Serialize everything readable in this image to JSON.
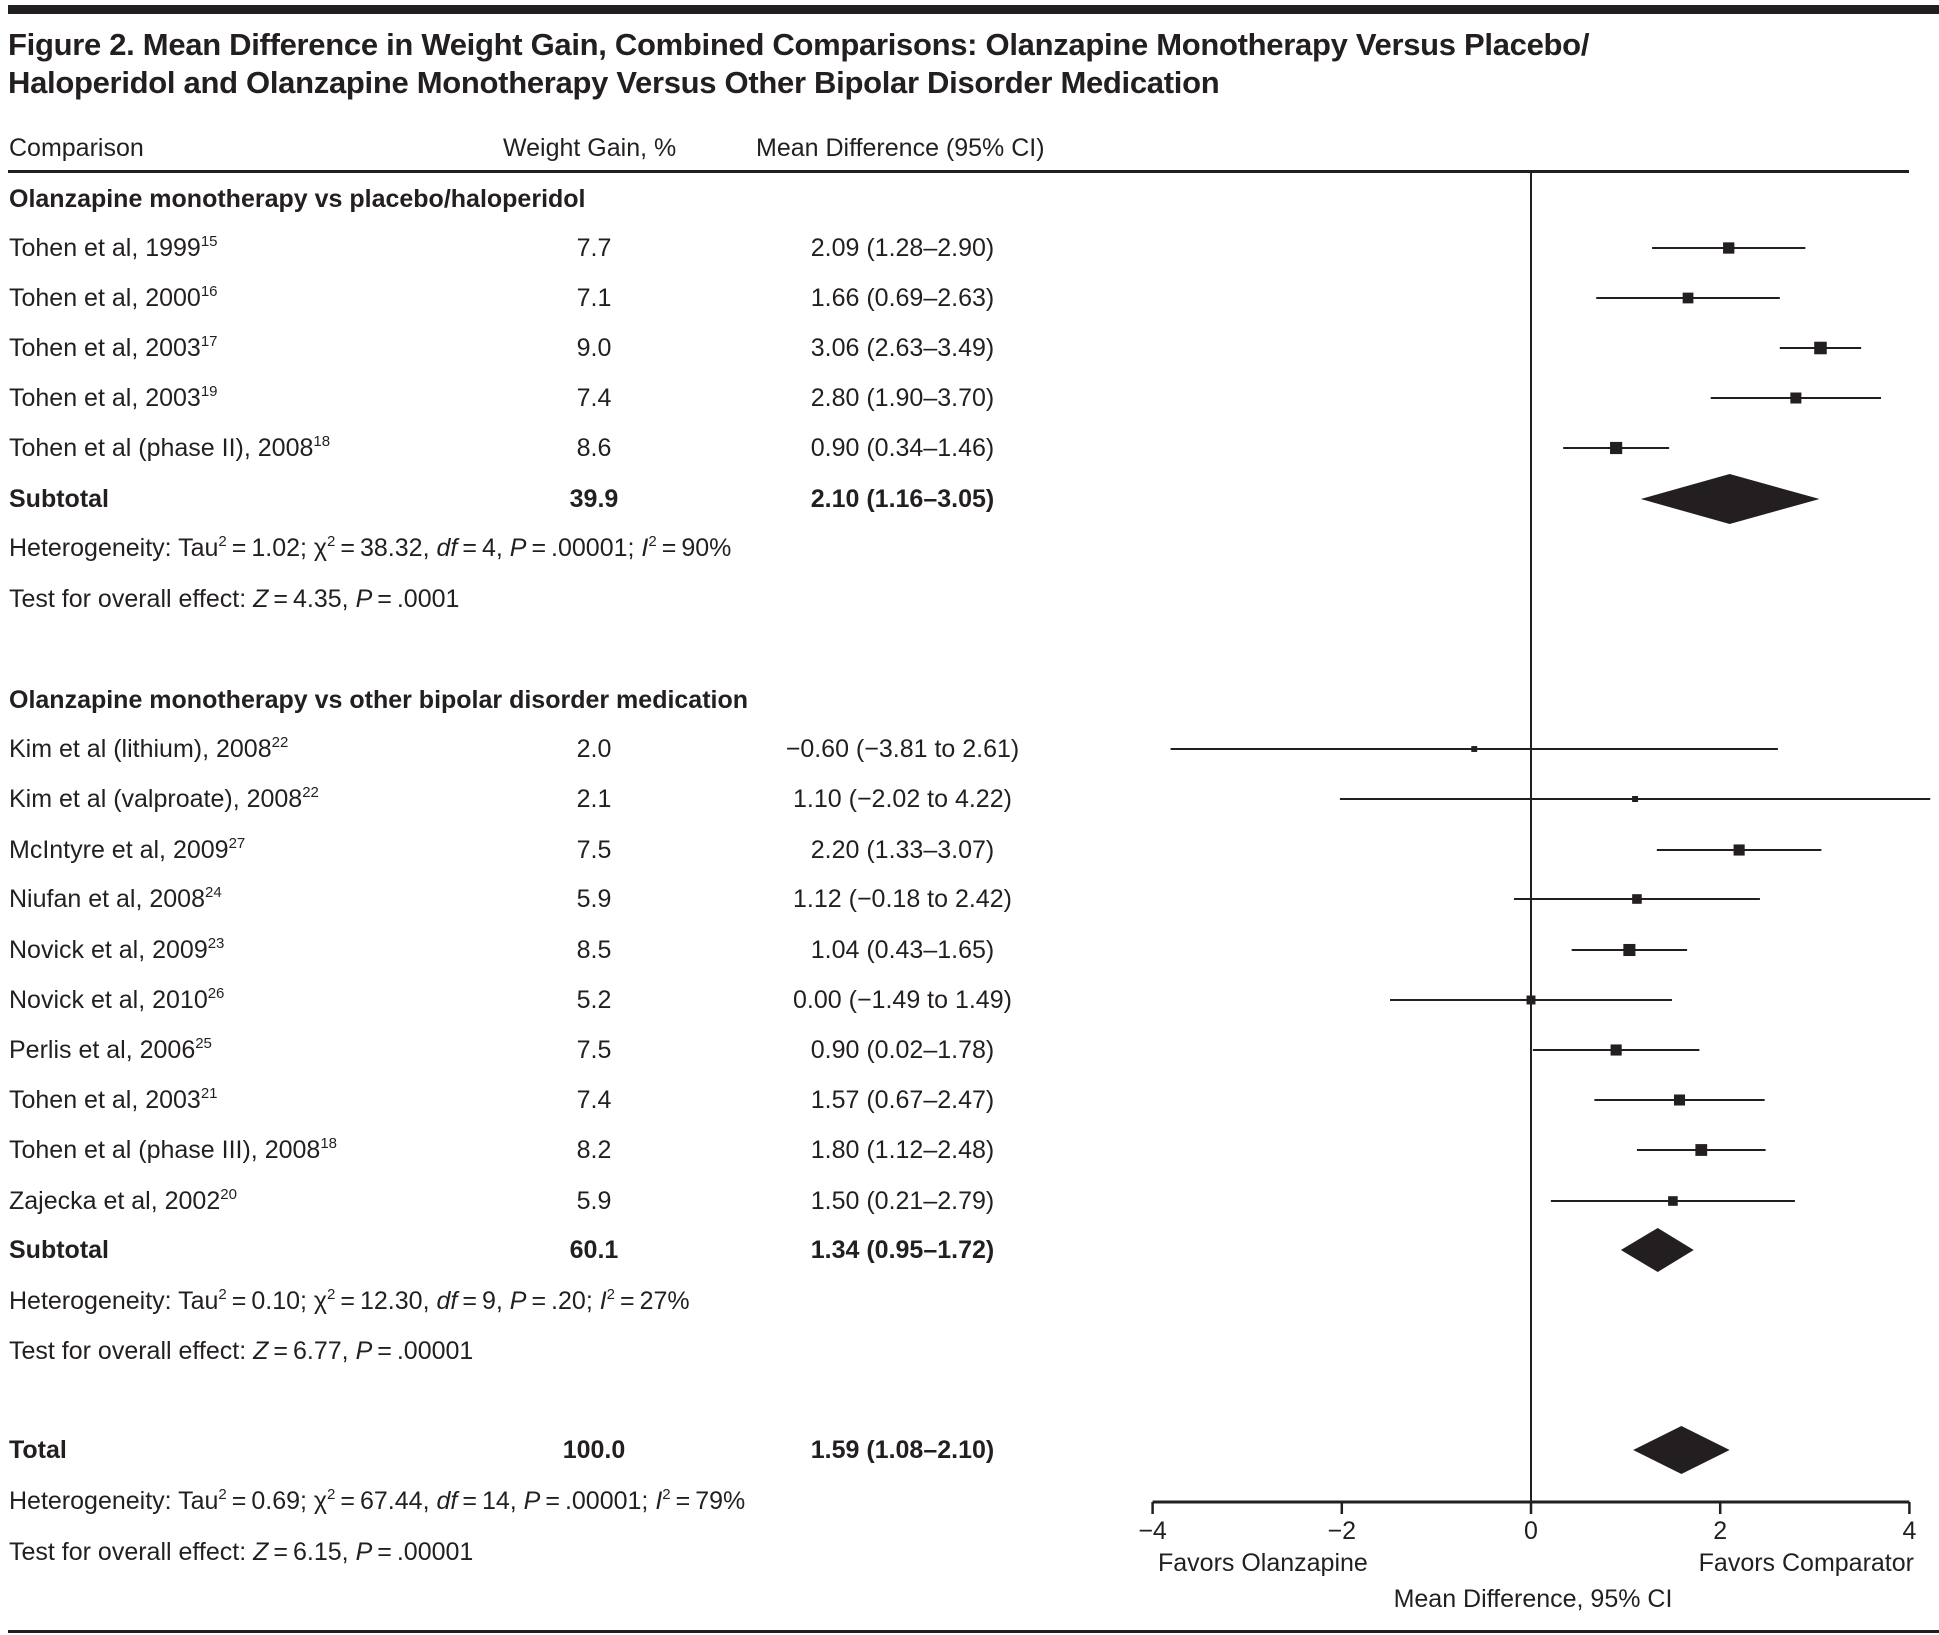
{
  "figure": {
    "title_line1": "Figure 2. Mean Difference in Weight Gain, Combined Comparisons: Olanzapine Monotherapy Versus Placebo/",
    "title_line2": "Haloperidol and Olanzapine Monotherapy Versus Other Bipolar Disorder Medication"
  },
  "columns": {
    "comparison": "Comparison",
    "weight": "Weight Gain, %",
    "md": "Mean Difference (95% CI)"
  },
  "sections": [
    {
      "heading": "Olanzapine monotherapy vs placebo/haloperidol",
      "studies": [
        {
          "label": "Tohen et al, 1999",
          "ref": "15",
          "weight": "7.7",
          "md_text": "2.09 (1.28–2.90)"
        },
        {
          "label": "Tohen et al, 2000",
          "ref": "16",
          "weight": "7.1",
          "md_text": "1.66 (0.69–2.63)"
        },
        {
          "label": "Tohen et al, 2003",
          "ref": "17",
          "weight": "9.0",
          "md_text": "3.06 (2.63–3.49)"
        },
        {
          "label": "Tohen et al, 2003",
          "ref": "19",
          "weight": "7.4",
          "md_text": "2.80 (1.90–3.70)"
        },
        {
          "label": "Tohen et al (phase II), 2008",
          "ref": "18",
          "weight": "8.6",
          "md_text": "0.90 (0.34–1.46)"
        }
      ],
      "subtotal": {
        "label": "Subtotal",
        "weight": "39.9",
        "md_text": "2.10 (1.16–3.05)"
      },
      "heterogeneity": {
        "prefix": "Heterogeneity: Tau",
        "tau2": "1.02",
        "chi2": "38.32",
        "df": "4",
        "p": ".00001",
        "i2": "90%"
      },
      "overall": {
        "prefix": "Test for overall effect: ",
        "z": "4.35",
        "p": ".0001"
      }
    },
    {
      "heading": "Olanzapine monotherapy vs other bipolar disorder medication",
      "studies": [
        {
          "label": "Kim et al (lithium), 2008",
          "ref": "22",
          "weight": "2.0",
          "md_text": "−0.60 (−3.81 to 2.61)"
        },
        {
          "label": "Kim et al (valproate), 2008",
          "ref": "22",
          "weight": "2.1",
          "md_text": "1.10 (−2.02 to 4.22)"
        },
        {
          "label": "McIntyre et al, 2009",
          "ref": "27",
          "weight": "7.5",
          "md_text": "2.20 (1.33–3.07)"
        },
        {
          "label": "Niufan et al, 2008",
          "ref": "24",
          "weight": "5.9",
          "md_text": "1.12 (−0.18 to 2.42)"
        },
        {
          "label": "Novick et al, 2009",
          "ref": "23",
          "weight": "8.5",
          "md_text": "1.04 (0.43–1.65)"
        },
        {
          "label": "Novick et al, 2010",
          "ref": "26",
          "weight": "5.2",
          "md_text": "0.00 (−1.49 to 1.49)"
        },
        {
          "label": "Perlis et al, 2006",
          "ref": "25",
          "weight": "7.5",
          "md_text": "0.90 (0.02–1.78)"
        },
        {
          "label": "Tohen et al, 2003",
          "ref": "21",
          "weight": "7.4",
          "md_text": "1.57 (0.67–2.47)"
        },
        {
          "label": "Tohen et al (phase III), 2008",
          "ref": "18",
          "weight": "8.2",
          "md_text": "1.80 (1.12–2.48)"
        },
        {
          "label": "Zajecka et al, 2002",
          "ref": "20",
          "weight": "5.9",
          "md_text": "1.50 (0.21–2.79)"
        }
      ],
      "subtotal": {
        "label": "Subtotal",
        "weight": "60.1",
        "md_text": "1.34 (0.95–1.72)"
      },
      "heterogeneity": {
        "prefix": "Heterogeneity: Tau",
        "tau2": "0.10",
        "chi2": "12.30",
        "df": "9",
        "p": ".20",
        "i2": "27%"
      },
      "overall": {
        "prefix": "Test for overall effect: ",
        "z": "6.77",
        "p": ".00001"
      }
    }
  ],
  "total": {
    "label": "Total",
    "weight": "100.0",
    "md_text": "1.59 (1.08–2.10)",
    "heterogeneity": {
      "prefix": "Heterogeneity: Tau",
      "tau2": "0.69",
      "chi2": "67.44",
      "df": "14",
      "p": ".00001",
      "i2": "79%"
    },
    "overall": {
      "prefix": "Test for overall effect: ",
      "z": "6.15",
      "p": ".00001"
    }
  },
  "chart_data": {
    "type": "forest",
    "title": "Mean Difference in Weight Gain, Combined Comparisons",
    "xlabel": "Mean Difference, 95% CI",
    "xlim": [
      -4,
      4
    ],
    "xticks": [
      -4,
      -2,
      0,
      2,
      4
    ],
    "xtick_labels": [
      "−4",
      "−2",
      "0",
      "2",
      "4"
    ],
    "left_annotation": "Favors Olanzapine",
    "right_annotation": "Favors Comparator",
    "reference_line": 0,
    "series": [
      {
        "name": "Olanzapine monotherapy vs placebo/haloperidol",
        "points": [
          {
            "study": "Tohen et al, 1999",
            "weight": 7.7,
            "md": 2.09,
            "lo": 1.28,
            "hi": 2.9
          },
          {
            "study": "Tohen et al, 2000",
            "weight": 7.1,
            "md": 1.66,
            "lo": 0.69,
            "hi": 2.63
          },
          {
            "study": "Tohen et al, 2003",
            "weight": 9.0,
            "md": 3.06,
            "lo": 2.63,
            "hi": 3.49
          },
          {
            "study": "Tohen et al, 2003",
            "weight": 7.4,
            "md": 2.8,
            "lo": 1.9,
            "hi": 3.7
          },
          {
            "study": "Tohen et al (phase II), 2008",
            "weight": 8.6,
            "md": 0.9,
            "lo": 0.34,
            "hi": 1.46
          }
        ],
        "subtotal": {
          "weight": 39.9,
          "md": 2.1,
          "lo": 1.16,
          "hi": 3.05
        }
      },
      {
        "name": "Olanzapine monotherapy vs other bipolar disorder medication",
        "points": [
          {
            "study": "Kim et al (lithium), 2008",
            "weight": 2.0,
            "md": -0.6,
            "lo": -3.81,
            "hi": 2.61
          },
          {
            "study": "Kim et al (valproate), 2008",
            "weight": 2.1,
            "md": 1.1,
            "lo": -2.02,
            "hi": 4.22
          },
          {
            "study": "McIntyre et al, 2009",
            "weight": 7.5,
            "md": 2.2,
            "lo": 1.33,
            "hi": 3.07
          },
          {
            "study": "Niufan et al, 2008",
            "weight": 5.9,
            "md": 1.12,
            "lo": -0.18,
            "hi": 2.42
          },
          {
            "study": "Novick et al, 2009",
            "weight": 8.5,
            "md": 1.04,
            "lo": 0.43,
            "hi": 1.65
          },
          {
            "study": "Novick et al, 2010",
            "weight": 5.2,
            "md": 0.0,
            "lo": -1.49,
            "hi": 1.49
          },
          {
            "study": "Perlis et al, 2006",
            "weight": 7.5,
            "md": 0.9,
            "lo": 0.02,
            "hi": 1.78
          },
          {
            "study": "Tohen et al, 2003",
            "weight": 7.4,
            "md": 1.57,
            "lo": 0.67,
            "hi": 2.47
          },
          {
            "study": "Tohen et al (phase III), 2008",
            "weight": 8.2,
            "md": 1.8,
            "lo": 1.12,
            "hi": 2.48
          },
          {
            "study": "Zajecka et al, 2002",
            "weight": 5.9,
            "md": 1.5,
            "lo": 0.21,
            "hi": 2.79
          }
        ],
        "subtotal": {
          "weight": 60.1,
          "md": 1.34,
          "lo": 0.95,
          "hi": 1.72
        }
      }
    ],
    "total": {
      "weight": 100.0,
      "md": 1.59,
      "lo": 1.08,
      "hi": 2.1
    }
  }
}
